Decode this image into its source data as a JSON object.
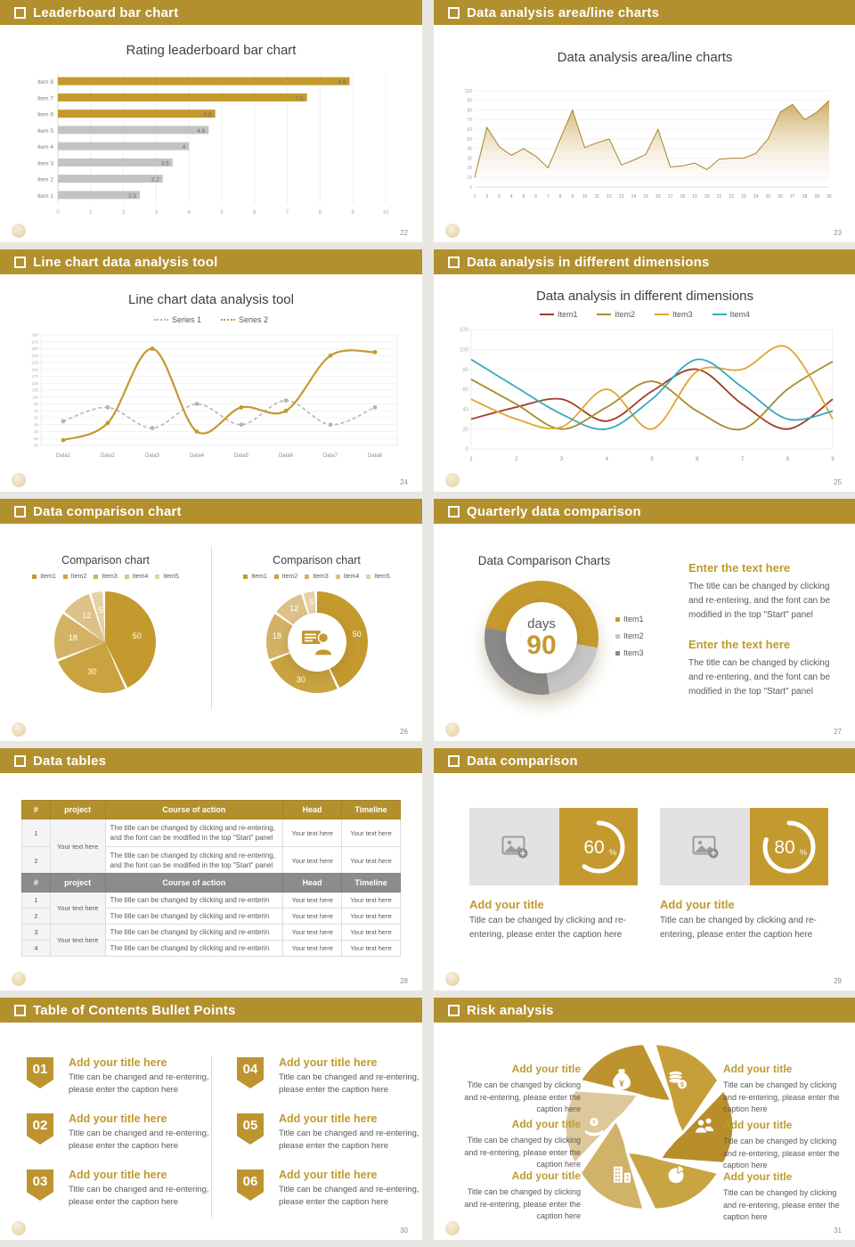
{
  "page": {
    "background": "#e9e7e3",
    "accent_gold": "#b2902e",
    "chart_gold": "#c49a2f",
    "heading_gold": "#bf9a30"
  },
  "slides": {
    "s1": {
      "header": "Leaderboard bar chart",
      "page": "22"
    },
    "s2": {
      "header": "Data analysis area/line charts",
      "page": "23"
    },
    "s3": {
      "header": "Line chart data analysis tool",
      "page": "24"
    },
    "s4": {
      "header": "Data analysis in different dimensions",
      "page": "25"
    },
    "s5": {
      "header": "Data comparison chart",
      "page": "26"
    },
    "s6": {
      "header": "Quarterly data comparison",
      "page": "27",
      "blocks": [
        {
          "heading": "Enter the text here",
          "body": "The title can be changed by clicking and re-entering, and the font can be modified in the top \"Start\" panel"
        },
        {
          "heading": "Enter the text here",
          "body": "The title can be changed by clicking and re-entering, and the font can be modified in the top \"Start\" panel"
        }
      ]
    },
    "s7": {
      "header": "Data tables",
      "page": "28",
      "tables": [
        {
          "theme": "gold",
          "columns": [
            "#",
            "project",
            "Course of action",
            "Head",
            "Timeline"
          ],
          "project_groups": [
            {
              "label": "Your text here",
              "span": 2
            }
          ],
          "rows": [
            {
              "num": "1",
              "course": "The title can be changed by clicking and re-entering, and the font can be modified in the top \"Start\" panel",
              "head": "Your text here",
              "timeline": "Your text here"
            },
            {
              "num": "2",
              "course": "The title can be changed by clicking and re-entering, and the font can be modified in the top \"Start\" panel",
              "head": "Your text here",
              "timeline": "Your text here"
            }
          ]
        },
        {
          "theme": "gray",
          "columns": [
            "#",
            "project",
            "Course of action",
            "Head",
            "Timeline"
          ],
          "project_groups": [
            {
              "label": "Your text here",
              "span": 2
            },
            {
              "label": "Your text here",
              "span": 2
            }
          ],
          "rows": [
            {
              "num": "1",
              "course": "The title can be changed by clicking and re-enterin",
              "head": "Your text here",
              "timeline": "Your text here"
            },
            {
              "num": "2",
              "course": "The title can be changed by clicking and re-enterin",
              "head": "Your text here",
              "timeline": "Your text here"
            },
            {
              "num": "3",
              "course": "The title can be changed by clicking and re-enterin",
              "head": "Your text here",
              "timeline": "Your text here"
            },
            {
              "num": "4",
              "course": "The title can be changed by clicking and re-enterin",
              "head": "Your text here",
              "timeline": "Your text here"
            }
          ]
        }
      ]
    },
    "s8": {
      "header": "Data comparison",
      "page": "29",
      "cards": [
        {
          "percent": 60,
          "title": "Add your title",
          "caption": "Title can be changed by clicking and re-entering, please enter the caption here"
        },
        {
          "percent": 80,
          "title": "Add your title",
          "caption": "Title can be changed by clicking and re-entering, please enter the caption here"
        }
      ]
    },
    "s9": {
      "header": "Table of Contents Bullet Points",
      "page": "30",
      "items": [
        {
          "num": "01",
          "title": "Add your title here",
          "caption": "Title can be changed and re-entering, please enter the caption here"
        },
        {
          "num": "02",
          "title": "Add your title here",
          "caption": "Title can be changed and re-entering, please enter the caption here"
        },
        {
          "num": "03",
          "title": "Add your title here",
          "caption": "Title can be changed and re-entering, please enter the caption here"
        },
        {
          "num": "04",
          "title": "Add your title here",
          "caption": "Title can be changed and re-entering, please enter the caption here"
        },
        {
          "num": "05",
          "title": "Add your title here",
          "caption": "Title can be changed and re-entering, please enter the caption here"
        },
        {
          "num": "06",
          "title": "Add your title here",
          "caption": "Title can be changed and re-entering, please enter the caption here"
        }
      ]
    },
    "s10": {
      "header": "Risk analysis",
      "page": "31",
      "blocks": [
        {
          "side": "left",
          "title": "Add your title",
          "caption": "Title can be changed by clicking and re-entering, please enter the caption here"
        },
        {
          "side": "left",
          "title": "Add your title",
          "caption": "Title can be changed by clicking and re-entering, please enter the caption here"
        },
        {
          "side": "left",
          "title": "Add your title",
          "caption": "Title can be changed by clicking and re-entering, please enter the caption here"
        },
        {
          "side": "right",
          "title": "Add your title",
          "caption": "Title can be changed by clicking and re-entering, please enter the caption here"
        },
        {
          "side": "right",
          "title": "Add your title",
          "caption": "Title can be changed by clicking and re-entering, please enter the caption here"
        },
        {
          "side": "right",
          "title": "Add your title",
          "caption": "Title can be changed by clicking and re-entering, please enter the caption here"
        }
      ],
      "icons": [
        "money-bag",
        "coins",
        "people",
        "pie-chart",
        "building",
        "hand-coin"
      ],
      "petal_colors": [
        "#bd9330",
        "#c79f39",
        "#b88e2b",
        "#c9a443",
        "#d0b269",
        "#ddc89b"
      ]
    }
  },
  "chart_data": [
    {
      "type": "bar",
      "orientation": "horizontal",
      "title": "Rating leaderboard bar chart",
      "categories": [
        "Item 8",
        "Item 7",
        "Item 6",
        "Item 5",
        "Item 4",
        "Item 3",
        "Item 2",
        "Item 1"
      ],
      "values": [
        8.9,
        7.6,
        4.8,
        4.6,
        4,
        3.5,
        3.2,
        2.5
      ],
      "bar_colors": [
        "#c49a2f",
        "#c49a2f",
        "#c49a2f",
        "#c3c3c3",
        "#c3c3c3",
        "#c3c3c3",
        "#c3c3c3",
        "#c3c3c3"
      ],
      "xlim": [
        0,
        10
      ],
      "xticks": [
        0,
        1,
        2,
        3,
        4,
        5,
        6,
        7,
        8,
        9,
        10
      ],
      "grid": true
    },
    {
      "type": "area",
      "title": "Data analysis area/line charts",
      "x": [
        1,
        2,
        3,
        4,
        5,
        6,
        7,
        8,
        9,
        10,
        11,
        12,
        13,
        14,
        15,
        16,
        17,
        18,
        19,
        20,
        21,
        22,
        23,
        24,
        25,
        26,
        27,
        28,
        29,
        30
      ],
      "values": [
        10,
        62,
        42,
        33,
        40,
        32,
        20,
        50,
        80,
        41,
        46,
        50,
        23,
        28,
        34,
        60,
        21,
        22,
        25,
        18,
        29,
        30,
        30,
        35,
        50,
        78,
        86,
        70,
        78,
        90
      ],
      "ylim": [
        0,
        100
      ],
      "ytick_step": 10,
      "line_color": "#a8842c",
      "fill_top": "#c7a04a",
      "fill_bottom": "#ffffff"
    },
    {
      "type": "line",
      "title": "Line chart data analysis tool",
      "categories": [
        "Data1",
        "Data2",
        "Data3",
        "Data4",
        "Data5",
        "Data6",
        "Data7",
        "Data8"
      ],
      "ylim": [
        -30,
        290
      ],
      "ytick_step": 20,
      "legend_position": "top",
      "series": [
        {
          "name": "Series 1",
          "color": "#b5b5b5",
          "dashed": true,
          "markers": true,
          "values": [
            40,
            80,
            20,
            90,
            30,
            100,
            30,
            80
          ]
        },
        {
          "name": "Series 2",
          "color": "#c49a2f",
          "dashed": false,
          "markers": true,
          "values": [
            -15,
            35,
            250,
            10,
            80,
            70,
            230,
            240
          ]
        }
      ]
    },
    {
      "type": "line",
      "title": "Data analysis in different dimensions",
      "x": [
        1,
        2,
        3,
        4,
        5,
        6,
        7,
        8,
        9
      ],
      "ylim": [
        0,
        120
      ],
      "ytick_step": 20,
      "legend_position": "top",
      "series": [
        {
          "name": "Item1",
          "color": "#a23b28",
          "values": [
            30,
            42,
            50,
            28,
            58,
            80,
            45,
            20,
            50
          ]
        },
        {
          "name": "Item2",
          "color": "#a58d2c",
          "values": [
            70,
            45,
            20,
            42,
            68,
            38,
            20,
            60,
            88
          ]
        },
        {
          "name": "Item3",
          "color": "#e3a42f",
          "values": [
            50,
            30,
            22,
            60,
            20,
            78,
            80,
            102,
            30
          ]
        },
        {
          "name": "Item4",
          "color": "#35a9bf",
          "values": [
            90,
            62,
            35,
            20,
            50,
            90,
            62,
            30,
            38
          ]
        }
      ]
    },
    {
      "type": "pie",
      "title": "Comparison chart",
      "labels": [
        "Item1",
        "Item2",
        "Item3",
        "Item4",
        "Item5"
      ],
      "values": [
        50,
        30,
        18,
        12,
        5
      ],
      "colors": [
        "#c49a2f",
        "#c9a340",
        "#d3b266",
        "#dcc288",
        "#e5d2a4"
      ]
    },
    {
      "type": "donut",
      "title": "Comparison chart",
      "labels": [
        "Item1",
        "Item2",
        "Item3",
        "Item4",
        "Item5"
      ],
      "values": [
        50,
        30,
        18,
        12,
        5
      ],
      "colors": [
        "#c49a2f",
        "#c9a340",
        "#d3b266",
        "#dcc288",
        "#e5d2a4"
      ],
      "center_icon": "presenter-icon"
    },
    {
      "type": "donut",
      "title": "Data Comparison Charts",
      "labels": [
        "Item1",
        "Item2",
        "Item3"
      ],
      "values": [
        50,
        20,
        30
      ],
      "colors": [
        "#c49a2f",
        "#c6c6c6",
        "#8a8a8a"
      ],
      "rotation": -80,
      "center_label": "days",
      "center_value": "90"
    },
    {
      "type": "progress",
      "values": [
        60,
        80
      ],
      "unit": "%",
      "ring_color": "#ffffff",
      "bg_color": "#c49a2f"
    }
  ]
}
